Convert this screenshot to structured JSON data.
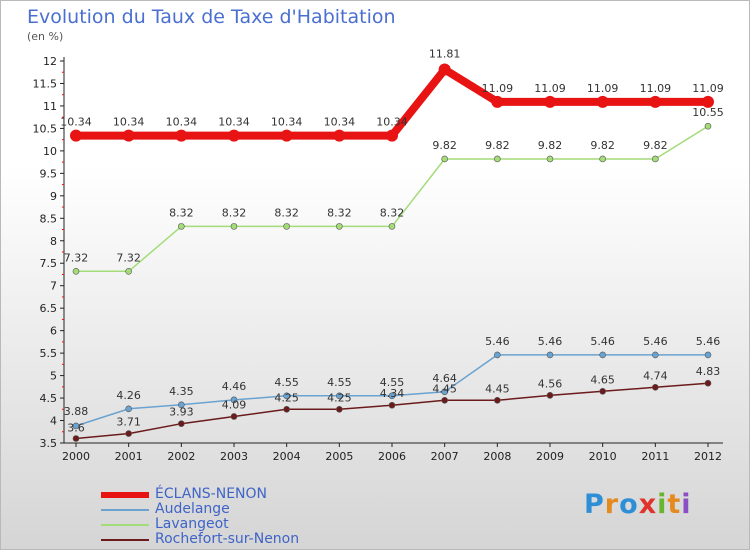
{
  "header": {
    "title": "Evolution du Taux de Taxe d'Habitation",
    "subtitle": "(en %)"
  },
  "chart_data": {
    "type": "line",
    "title": "Evolution du Taux de Taxe d'Habitation",
    "subtitle": "(en %)",
    "xlabel": "",
    "ylabel": "",
    "x": [
      "2000",
      "2001",
      "2002",
      "2003",
      "2004",
      "2005",
      "2006",
      "2007",
      "2008",
      "2009",
      "2010",
      "2011",
      "2012"
    ],
    "ylim": [
      3.5,
      12
    ],
    "y_ticks": [
      "3.5",
      "4",
      "4.5",
      "5",
      "5.5",
      "6",
      "6.5",
      "7",
      "7.5",
      "8",
      "8.5",
      "9",
      "9.5",
      "10",
      "10.5",
      "11",
      "11.5",
      "12"
    ],
    "grid": false,
    "legend_position": "bottom-left",
    "series": [
      {
        "name": "ÉCLANS-NENON",
        "color": "#e81313",
        "values": [
          10.34,
          10.34,
          10.34,
          10.34,
          10.34,
          10.34,
          10.34,
          11.81,
          11.09,
          11.09,
          11.09,
          11.09,
          11.09
        ],
        "labels": [
          "10.34",
          "10.34",
          "10.34",
          "10.34",
          "10.34",
          "10.34",
          "10.34",
          "11.81",
          "11.09",
          "11.09",
          "11.09",
          "11.09",
          "11.09"
        ]
      },
      {
        "name": "Audelange",
        "color": "#6aa2d0",
        "values": [
          3.88,
          4.26,
          4.35,
          4.46,
          4.55,
          4.55,
          4.55,
          4.64,
          5.46,
          5.46,
          5.46,
          5.46,
          5.46
        ],
        "labels": [
          "3.88",
          "4.26",
          "4.35",
          "4.46",
          "4.55",
          "4.55",
          "4.55",
          "4.64",
          "5.46",
          "5.46",
          "5.46",
          "5.46",
          "5.46"
        ]
      },
      {
        "name": "Lavangeot",
        "color": "#a3dc78",
        "values": [
          7.32,
          7.32,
          8.32,
          8.32,
          8.32,
          8.32,
          8.32,
          9.82,
          9.82,
          9.82,
          9.82,
          9.82,
          10.55
        ],
        "labels": [
          "7.32",
          "7.32",
          "8.32",
          "8.32",
          "8.32",
          "8.32",
          "8.32",
          "9.82",
          "9.82",
          "9.82",
          "9.82",
          "9.82",
          "10.55"
        ]
      },
      {
        "name": "Rochefort-sur-Nenon",
        "color": "#6b1b1b",
        "values": [
          3.6,
          3.71,
          3.93,
          4.09,
          4.25,
          4.25,
          4.34,
          4.45,
          4.45,
          4.56,
          4.65,
          4.74,
          4.83
        ],
        "labels": [
          "3.6",
          "3.71",
          "3.93",
          "4.09",
          "4.25",
          "4.25",
          "4.34",
          "4.45",
          "4.45",
          "4.56",
          "4.65",
          "4.74",
          "4.83"
        ]
      }
    ]
  },
  "legend": {
    "items": [
      {
        "label": "ÉCLANS-NENON",
        "color": "#e81313"
      },
      {
        "label": "Audelange",
        "color": "#6aa2d0"
      },
      {
        "label": "Lavangeot",
        "color": "#a3dc78"
      },
      {
        "label": "Rochefort-sur-Nenon",
        "color": "#6b1b1b"
      }
    ]
  },
  "brand": {
    "letters": [
      "P",
      "r",
      "o",
      "x",
      "i",
      "t",
      "i"
    ],
    "colors": [
      "#2f8fd6",
      "#e58a1f",
      "#2f8fd6",
      "#e0332b",
      "#68b52e",
      "#e58a1f",
      "#8a4fc2"
    ]
  }
}
